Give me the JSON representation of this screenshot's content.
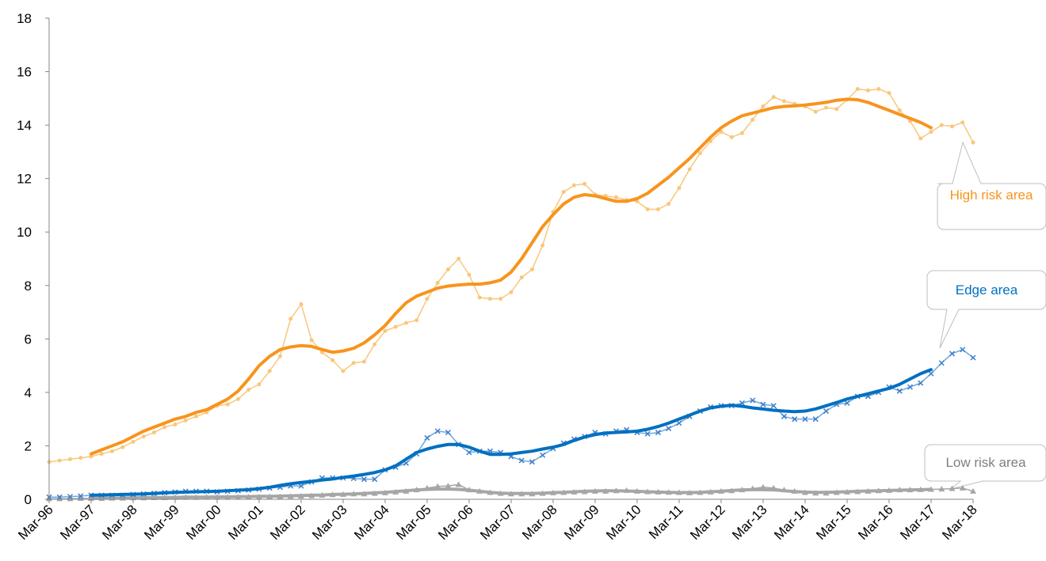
{
  "chart_data": {
    "type": "line",
    "categories": [
      "Mar-96",
      null,
      null,
      null,
      "Mar-97",
      null,
      null,
      null,
      "Mar-98",
      null,
      null,
      null,
      "Mar-99",
      null,
      null,
      null,
      "Mar-00",
      null,
      null,
      null,
      "Mar-01",
      null,
      null,
      null,
      "Mar-02",
      null,
      null,
      null,
      "Mar-03",
      null,
      null,
      null,
      "Mar-04",
      null,
      null,
      null,
      "Mar-05",
      null,
      null,
      null,
      "Mar-06",
      null,
      null,
      null,
      "Mar-07",
      null,
      null,
      null,
      "Mar-08",
      null,
      null,
      null,
      "Mar-09",
      null,
      null,
      null,
      "Mar-10",
      null,
      null,
      null,
      "Mar-11",
      null,
      null,
      null,
      "Mar-12",
      null,
      null,
      null,
      "Mar-13",
      null,
      null,
      null,
      "Mar-14",
      null,
      null,
      null,
      "Mar-15",
      null,
      null,
      null,
      "Mar-16",
      null,
      null,
      null,
      "Mar-17",
      null,
      null,
      null,
      "Mar-18"
    ],
    "series": [
      {
        "name": "High risk area",
        "color": "#f9c77c",
        "marker": "circle",
        "linewidth": 1.5,
        "values": [
          1.4,
          1.45,
          1.5,
          1.55,
          1.6,
          1.7,
          1.8,
          1.95,
          2.15,
          2.35,
          2.5,
          2.7,
          2.8,
          2.95,
          3.1,
          3.25,
          3.5,
          3.55,
          3.75,
          4.1,
          4.3,
          4.8,
          5.35,
          6.75,
          7.3,
          5.95,
          5.5,
          5.2,
          4.8,
          5.1,
          5.15,
          5.8,
          6.3,
          6.45,
          6.6,
          6.7,
          7.5,
          8.1,
          8.6,
          9.0,
          8.4,
          7.55,
          7.5,
          7.5,
          7.75,
          8.3,
          8.6,
          9.5,
          10.75,
          11.5,
          11.75,
          11.8,
          11.4,
          11.35,
          11.3,
          11.2,
          11.15,
          10.85,
          10.85,
          11.05,
          11.65,
          12.35,
          12.95,
          13.4,
          13.75,
          13.55,
          13.7,
          14.2,
          14.7,
          15.05,
          14.9,
          14.8,
          14.7,
          14.5,
          14.65,
          14.6,
          14.95,
          15.35,
          15.3,
          15.35,
          15.2,
          14.55,
          14.15,
          13.5,
          13.75,
          14.0,
          13.95,
          14.1,
          13.35
        ]
      },
      {
        "color": "#f7941d",
        "linewidth": 4,
        "values": [
          null,
          null,
          null,
          null,
          1.7,
          1.85,
          2.0,
          2.15,
          2.35,
          2.55,
          2.7,
          2.85,
          3.0,
          3.1,
          3.25,
          3.35,
          3.55,
          3.75,
          4.05,
          4.5,
          5.0,
          5.35,
          5.6,
          5.7,
          5.75,
          5.72,
          5.6,
          5.5,
          5.55,
          5.65,
          5.85,
          6.15,
          6.5,
          6.95,
          7.35,
          7.6,
          7.75,
          7.9,
          7.98,
          8.02,
          8.05,
          8.05,
          8.1,
          8.2,
          8.5,
          9.0,
          9.6,
          10.2,
          10.65,
          11.05,
          11.3,
          11.4,
          11.35,
          11.25,
          11.15,
          11.15,
          11.25,
          11.45,
          11.75,
          12.05,
          12.4,
          12.75,
          13.15,
          13.55,
          13.9,
          14.15,
          14.35,
          14.45,
          14.55,
          14.65,
          14.7,
          14.72,
          14.75,
          14.8,
          14.85,
          14.93,
          14.97,
          14.95,
          14.85,
          14.7,
          14.55,
          14.4,
          14.25,
          14.1,
          13.9,
          null,
          null,
          null,
          null
        ]
      },
      {
        "name": "Edge area",
        "color": "#6fa8dc",
        "marker": "x",
        "linewidth": 1.5,
        "values": [
          0.08,
          0.08,
          0.1,
          0.12,
          0.15,
          0.15,
          0.15,
          0.15,
          0.18,
          0.2,
          0.22,
          0.25,
          0.27,
          0.3,
          0.3,
          0.3,
          0.28,
          0.3,
          0.32,
          0.35,
          0.38,
          0.42,
          0.45,
          0.5,
          0.5,
          0.65,
          0.8,
          0.8,
          0.8,
          0.78,
          0.75,
          0.75,
          1.1,
          1.2,
          1.35,
          1.7,
          2.3,
          2.55,
          2.5,
          2.05,
          1.75,
          1.8,
          1.8,
          1.75,
          1.6,
          1.45,
          1.4,
          1.65,
          1.9,
          2.1,
          2.25,
          2.35,
          2.5,
          2.45,
          2.55,
          2.6,
          2.5,
          2.45,
          2.5,
          2.65,
          2.85,
          3.1,
          3.3,
          3.45,
          3.5,
          3.5,
          3.6,
          3.7,
          3.55,
          3.5,
          3.1,
          3.0,
          3.0,
          3.0,
          3.3,
          3.55,
          3.6,
          3.85,
          3.85,
          4.0,
          4.2,
          4.05,
          4.2,
          4.35,
          4.7,
          5.1,
          5.45,
          5.6,
          5.3
        ]
      },
      {
        "color": "#0070c0",
        "linewidth": 4,
        "values": [
          null,
          null,
          null,
          null,
          0.15,
          0.16,
          0.17,
          0.18,
          0.19,
          0.2,
          0.22,
          0.24,
          0.26,
          0.27,
          0.28,
          0.29,
          0.3,
          0.32,
          0.34,
          0.36,
          0.4,
          0.45,
          0.52,
          0.58,
          0.63,
          0.67,
          0.72,
          0.76,
          0.82,
          0.87,
          0.93,
          1.0,
          1.1,
          1.25,
          1.5,
          1.75,
          1.88,
          1.98,
          2.05,
          2.05,
          1.95,
          1.8,
          1.68,
          1.68,
          1.7,
          1.75,
          1.8,
          1.88,
          1.95,
          2.05,
          2.2,
          2.33,
          2.42,
          2.48,
          2.5,
          2.52,
          2.55,
          2.62,
          2.72,
          2.85,
          3.0,
          3.15,
          3.3,
          3.42,
          3.48,
          3.52,
          3.48,
          3.42,
          3.38,
          3.33,
          3.3,
          3.28,
          3.3,
          3.38,
          3.5,
          3.62,
          3.75,
          3.85,
          3.95,
          4.05,
          4.15,
          4.3,
          4.5,
          4.7,
          4.85,
          null,
          null,
          null,
          null
        ]
      },
      {
        "name": "Low risk area",
        "color": "#a6a6a6",
        "marker": "triangle",
        "linewidth": 1.5,
        "values": [
          0.02,
          0.02,
          0.02,
          0.03,
          0.03,
          0.03,
          0.04,
          0.04,
          0.05,
          0.05,
          0.06,
          0.06,
          0.07,
          0.07,
          0.07,
          0.08,
          0.08,
          0.08,
          0.08,
          0.09,
          0.09,
          0.1,
          0.1,
          0.11,
          0.12,
          0.13,
          0.15,
          0.17,
          0.18,
          0.2,
          0.2,
          0.22,
          0.24,
          0.27,
          0.3,
          0.35,
          0.42,
          0.48,
          0.5,
          0.55,
          0.35,
          0.3,
          0.25,
          0.22,
          0.2,
          0.2,
          0.2,
          0.22,
          0.24,
          0.25,
          0.27,
          0.28,
          0.3,
          0.3,
          0.32,
          0.33,
          0.3,
          0.28,
          0.27,
          0.26,
          0.25,
          0.24,
          0.25,
          0.27,
          0.3,
          0.32,
          0.35,
          0.4,
          0.45,
          0.42,
          0.35,
          0.3,
          0.25,
          0.23,
          0.23,
          0.25,
          0.27,
          0.28,
          0.3,
          0.32,
          0.33,
          0.35,
          0.35,
          0.36,
          0.37,
          0.38,
          0.4,
          0.42,
          0.3
        ]
      },
      {
        "color": "#a6a6a6",
        "linewidth": 4,
        "values": [
          null,
          null,
          null,
          null,
          0.03,
          0.04,
          0.04,
          0.05,
          0.05,
          0.06,
          0.06,
          0.07,
          0.07,
          0.08,
          0.08,
          0.08,
          0.09,
          0.09,
          0.1,
          0.1,
          0.11,
          0.11,
          0.12,
          0.13,
          0.14,
          0.15,
          0.16,
          0.18,
          0.19,
          0.2,
          0.22,
          0.24,
          0.26,
          0.29,
          0.32,
          0.35,
          0.37,
          0.38,
          0.38,
          0.37,
          0.34,
          0.3,
          0.26,
          0.23,
          0.22,
          0.22,
          0.22,
          0.23,
          0.25,
          0.26,
          0.28,
          0.3,
          0.31,
          0.32,
          0.32,
          0.31,
          0.3,
          0.28,
          0.27,
          0.26,
          0.25,
          0.25,
          0.26,
          0.28,
          0.3,
          0.33,
          0.35,
          0.36,
          0.36,
          0.35,
          0.32,
          0.29,
          0.27,
          0.26,
          0.26,
          0.27,
          0.28,
          0.3,
          0.31,
          0.32,
          0.33,
          0.34,
          0.35,
          0.36,
          0.37,
          null,
          null,
          null,
          null
        ]
      }
    ],
    "ylim": [
      0,
      18
    ],
    "yticks": [
      0,
      2,
      4,
      6,
      8,
      10,
      12,
      14,
      16,
      18
    ],
    "grid": false
  }
}
